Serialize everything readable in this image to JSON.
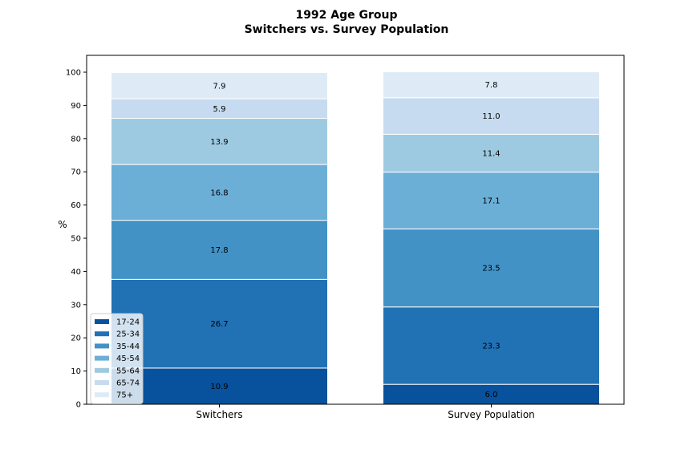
{
  "chart_data": {
    "type": "bar",
    "stacked": true,
    "title": "1992 Age Group",
    "subtitle": "Switchers vs. Survey Population",
    "xlabel": "",
    "ylabel": "%",
    "ylim": [
      0,
      100
    ],
    "yticks": [
      0,
      10,
      20,
      30,
      40,
      50,
      60,
      70,
      80,
      90,
      100
    ],
    "categories": [
      "Switchers",
      "Survey Population"
    ],
    "series": [
      {
        "name": "17-24",
        "color": "#08519c",
        "values": [
          10.9,
          6.0
        ]
      },
      {
        "name": "25-34",
        "color": "#2171b5",
        "values": [
          26.7,
          23.3
        ]
      },
      {
        "name": "35-44",
        "color": "#4292c6",
        "values": [
          17.8,
          23.5
        ]
      },
      {
        "name": "45-54",
        "color": "#6baed6",
        "values": [
          16.8,
          17.1
        ]
      },
      {
        "name": "55-64",
        "color": "#9ecae1",
        "values": [
          13.9,
          11.4
        ]
      },
      {
        "name": "65-74",
        "color": "#c6dbef",
        "values": [
          5.9,
          11.0
        ]
      },
      {
        "name": "75+",
        "color": "#deebf7",
        "values": [
          7.9,
          7.8
        ]
      }
    ],
    "legend_position": "lower-left",
    "grid": false
  }
}
